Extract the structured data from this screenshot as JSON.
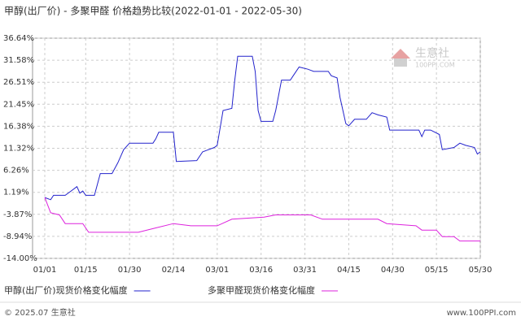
{
  "chart_data": {
    "type": "line",
    "title": "甲醇(出厂价) - 多聚甲醛 价格趋势比较(2022-01-01 - 2022-05-30)",
    "ylim": [
      -14.0,
      36.64
    ],
    "yticks": [
      {
        "value": 36.64,
        "label": "36.64%"
      },
      {
        "value": 31.58,
        "label": "31.58%"
      },
      {
        "value": 26.51,
        "label": "26.51%"
      },
      {
        "value": 21.45,
        "label": "21.45%"
      },
      {
        "value": 16.38,
        "label": "16.38%"
      },
      {
        "value": 11.32,
        "label": "11.32%"
      },
      {
        "value": 6.26,
        "label": "6.26%"
      },
      {
        "value": 1.19,
        "label": "1.19%"
      },
      {
        "value": -3.87,
        "label": "-3.87%"
      },
      {
        "value": -8.94,
        "label": "-8.94%"
      },
      {
        "value": -14.0,
        "label": "-14.00%"
      }
    ],
    "xlim": [
      "01/01",
      "05/30"
    ],
    "xticks": [
      "01/01",
      "01/15",
      "01/30",
      "02/14",
      "03/01",
      "03/16",
      "03/31",
      "04/15",
      "04/30",
      "05/15",
      "05/30"
    ],
    "grid": true,
    "series": [
      {
        "name": "甲醇(出厂价)现货价格变化幅度",
        "color": "#2222cc",
        "x": [
          "01/01",
          "01/03",
          "01/04",
          "01/08",
          "01/10",
          "01/12",
          "01/13",
          "01/14",
          "01/15",
          "01/18",
          "01/19",
          "01/20",
          "01/24",
          "01/26",
          "01/28",
          "01/30",
          "02/07",
          "02/08",
          "02/09",
          "02/14",
          "02/15",
          "02/22",
          "02/24",
          "02/28",
          "03/01",
          "03/03",
          "03/06",
          "03/07",
          "03/08",
          "03/13",
          "03/14",
          "03/15",
          "03/16",
          "03/20",
          "03/21",
          "03/23",
          "03/26",
          "03/27",
          "03/29",
          "04/01",
          "04/03",
          "04/08",
          "04/09",
          "04/11",
          "04/12",
          "04/14",
          "04/15",
          "04/17",
          "04/21",
          "04/23",
          "04/25",
          "04/28",
          "04/29",
          "05/09",
          "05/10",
          "05/11",
          "05/13",
          "05/16",
          "05/17",
          "05/21",
          "05/23",
          "05/25",
          "05/28",
          "05/29",
          "05/30"
        ],
        "values": [
          0,
          -0.5,
          0.5,
          0.5,
          1.5,
          2.5,
          1.0,
          1.5,
          0.5,
          0.5,
          3,
          5.5,
          5.5,
          8,
          11,
          12.5,
          12.5,
          13.5,
          15,
          15,
          8.3,
          8.5,
          10.5,
          11.5,
          12,
          20,
          20.5,
          27,
          32.5,
          32.5,
          29,
          20,
          17.5,
          17.5,
          20,
          27,
          27,
          28,
          30,
          29.5,
          29,
          29,
          28,
          27.5,
          23,
          17,
          16.5,
          18,
          18,
          19.5,
          19,
          18.5,
          15.5,
          15.5,
          14,
          15.5,
          15.5,
          14.5,
          11,
          11.5,
          12.5,
          12,
          11.5,
          10,
          10.5
        ]
      },
      {
        "name": "多聚甲醛现货价格变化幅度",
        "color": "#dd22dd",
        "x": [
          "01/01",
          "01/03",
          "01/06",
          "01/08",
          "01/14",
          "01/16",
          "02/02",
          "02/08",
          "02/14",
          "02/20",
          "03/01",
          "03/06",
          "03/17",
          "03/21",
          "04/02",
          "04/06",
          "04/25",
          "04/28",
          "05/08",
          "05/10",
          "05/15",
          "05/17",
          "05/21",
          "05/23",
          "05/30"
        ],
        "values": [
          0,
          -3.5,
          -4,
          -6,
          -6,
          -8,
          -8,
          -7,
          -6,
          -6.5,
          -6.5,
          -5,
          -4.5,
          -4,
          -4,
          -5,
          -5,
          -6,
          -6.5,
          -7.5,
          -7.5,
          -9,
          -9,
          -10,
          -10
        ]
      }
    ],
    "watermark": {
      "name": "生意社",
      "site": "100PPI.COM"
    },
    "footer": {
      "left": "© 2025.07 生意社",
      "right": "www.100PPI.com"
    }
  }
}
